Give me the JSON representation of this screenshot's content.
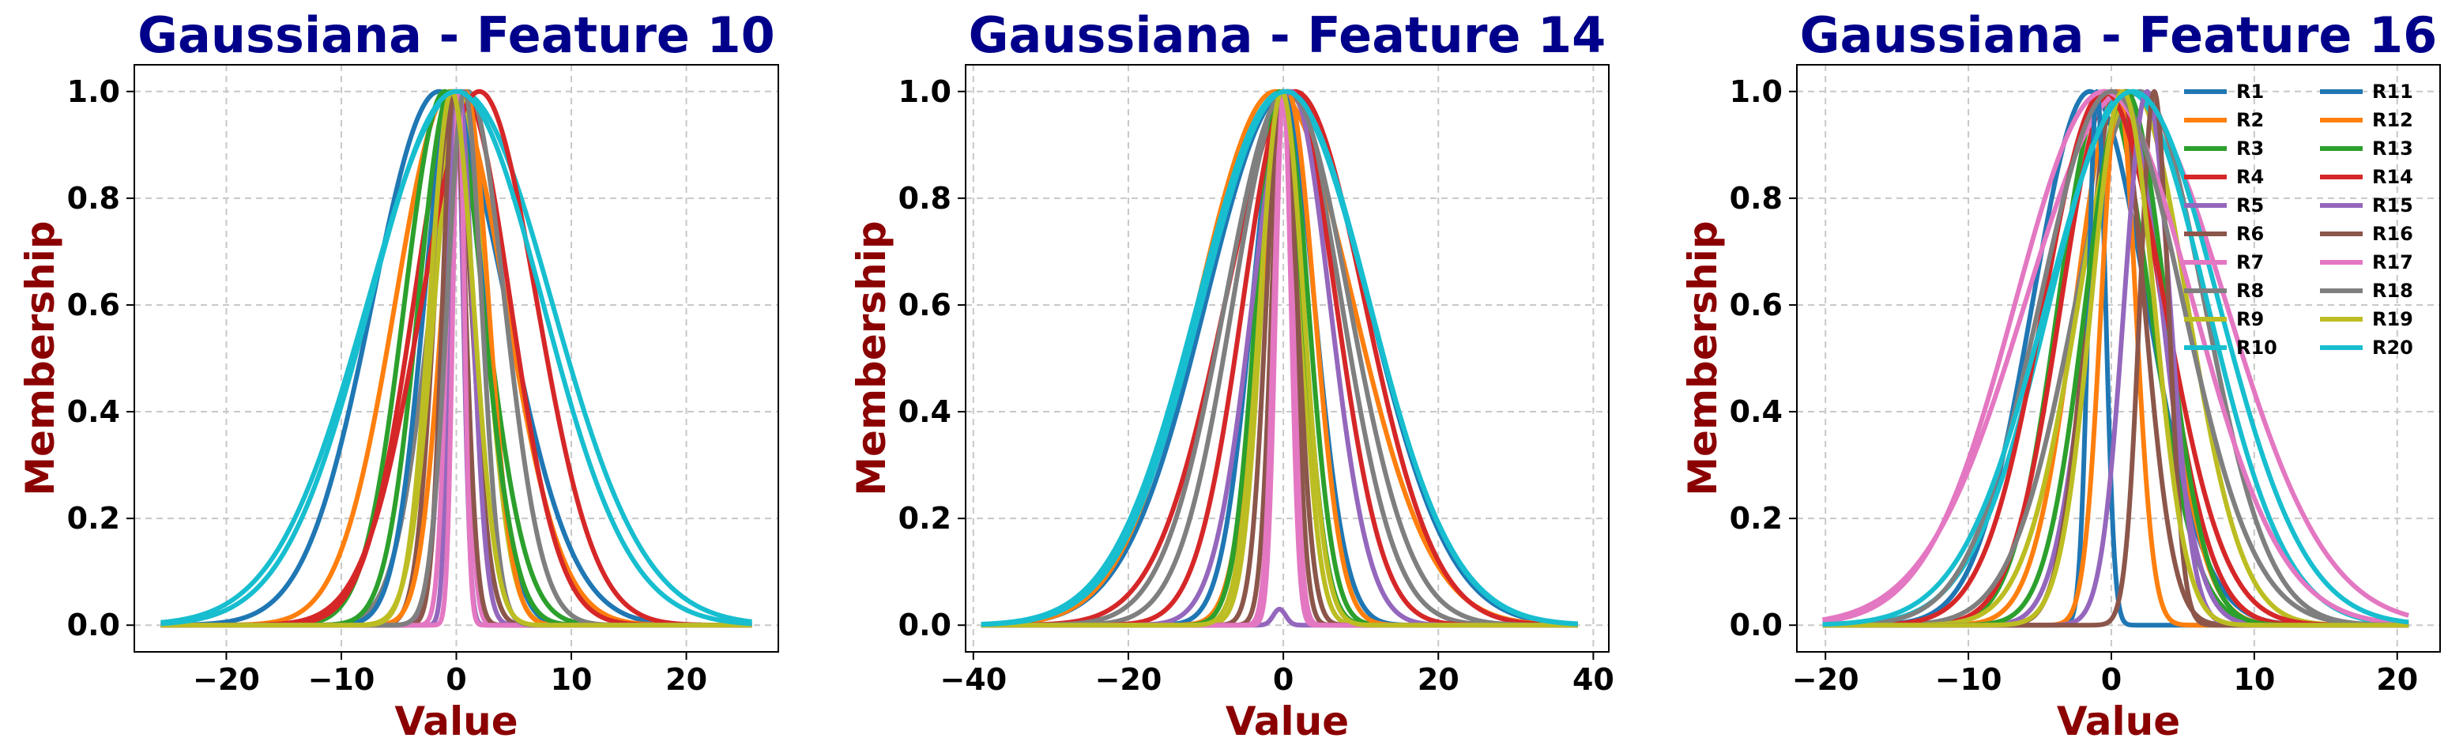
{
  "style": {
    "title_color": "#00008B",
    "label_color": "#8B0000",
    "grid": true,
    "grid_style": "dashed",
    "series_colors": [
      "#1f77b4",
      "#ff7f0e",
      "#2ca02c",
      "#d62728",
      "#9467bd",
      "#8c564b",
      "#e377c2",
      "#7f7f7f",
      "#bcbd22",
      "#17becf"
    ]
  },
  "chart_data": [
    {
      "type": "line",
      "title": "Gaussiana - Feature 10",
      "xlabel": "Value",
      "ylabel": "Membership",
      "xlim": [
        -28,
        28
      ],
      "ylim": [
        -0.05,
        1.05
      ],
      "xticks": [
        "−20",
        "−10",
        "0",
        "10",
        "20"
      ],
      "xtick_values": [
        -20,
        -10,
        0,
        10,
        20
      ],
      "yticks": [
        "0.0",
        "0.2",
        "0.4",
        "0.6",
        "0.8",
        "1.0"
      ],
      "ytick_values": [
        0,
        0.2,
        0.4,
        0.6,
        0.8,
        1.0
      ],
      "x_range": [
        -25.7,
        25.7
      ],
      "series": [
        {
          "name": "R1",
          "center": -1.5,
          "sigma": 5.8
        },
        {
          "name": "R2",
          "center": -0.5,
          "sigma": 4.8
        },
        {
          "name": "R3",
          "center": -1.0,
          "sigma": 3.5
        },
        {
          "name": "R4",
          "center": 0.5,
          "sigma": 4.2
        },
        {
          "name": "R5",
          "center": 0.0,
          "sigma": 0.6
        },
        {
          "name": "R6",
          "center": -0.3,
          "sigma": 1.6
        },
        {
          "name": "R7",
          "center": 0.0,
          "sigma": 0.8
        },
        {
          "name": "R8",
          "center": 1.0,
          "sigma": 3.2
        },
        {
          "name": "R9",
          "center": 0.3,
          "sigma": 2.2
        },
        {
          "name": "R10",
          "center": 0.3,
          "sigma": 8.0
        },
        {
          "name": "R11",
          "center": -0.2,
          "sigma": 2.6
        },
        {
          "name": "R12",
          "center": 0.8,
          "sigma": 2.0
        },
        {
          "name": "R13",
          "center": -0.5,
          "sigma": 2.8
        },
        {
          "name": "R14",
          "center": 2.0,
          "sigma": 5.0
        },
        {
          "name": "R15",
          "center": 0.2,
          "sigma": 1.2
        },
        {
          "name": "R16",
          "center": -0.2,
          "sigma": 1.0
        },
        {
          "name": "R17",
          "center": 0.2,
          "sigma": 0.5
        },
        {
          "name": "R18",
          "center": 0.7,
          "sigma": 1.5
        },
        {
          "name": "R19",
          "center": -0.4,
          "sigma": 1.9
        },
        {
          "name": "R20",
          "center": 0.0,
          "sigma": 7.5
        }
      ]
    },
    {
      "type": "line",
      "title": "Gaussiana - Feature 14",
      "xlabel": "Value",
      "ylabel": "Membership",
      "xlim": [
        -41,
        42
      ],
      "ylim": [
        -0.05,
        1.05
      ],
      "xticks": [
        "−40",
        "−20",
        "0",
        "20",
        "40"
      ],
      "xtick_values": [
        -40,
        -20,
        0,
        20,
        40
      ],
      "yticks": [
        "0.0",
        "0.2",
        "0.4",
        "0.6",
        "0.8",
        "1.0"
      ],
      "ytick_values": [
        0,
        0.2,
        0.4,
        0.6,
        0.8,
        1.0
      ],
      "x_range": [
        -39,
        38
      ],
      "series": [
        {
          "name": "R1",
          "center": 0.5,
          "sigma": 10.5
        },
        {
          "name": "R2",
          "center": -1.0,
          "sigma": 10.0
        },
        {
          "name": "R3",
          "center": 0.0,
          "sigma": 3.2
        },
        {
          "name": "R4",
          "center": 1.5,
          "sigma": 9.0
        },
        {
          "name": "R5",
          "center": -0.5,
          "sigma": 0.8,
          "peak": 0.03
        },
        {
          "name": "R6",
          "center": 0.0,
          "sigma": 1.5
        },
        {
          "name": "R7",
          "center": 0.0,
          "sigma": 1.2
        },
        {
          "name": "R8",
          "center": 0.5,
          "sigma": 7.0
        },
        {
          "name": "R9",
          "center": -0.3,
          "sigma": 2.5
        },
        {
          "name": "R10",
          "center": 0.0,
          "sigma": 11.0
        },
        {
          "name": "R11",
          "center": 0.0,
          "sigma": 4.0
        },
        {
          "name": "R12",
          "center": 0.5,
          "sigma": 3.5
        },
        {
          "name": "R13",
          "center": -0.5,
          "sigma": 3.0
        },
        {
          "name": "R14",
          "center": 0.8,
          "sigma": 6.0
        },
        {
          "name": "R15",
          "center": 1.0,
          "sigma": 5.0
        },
        {
          "name": "R16",
          "center": -0.2,
          "sigma": 2.0
        },
        {
          "name": "R17",
          "center": 0.0,
          "sigma": 1.0
        },
        {
          "name": "R18",
          "center": 0.5,
          "sigma": 8.0
        },
        {
          "name": "R19",
          "center": -0.2,
          "sigma": 2.8
        },
        {
          "name": "R20",
          "center": 0.3,
          "sigma": 10.8
        }
      ]
    },
    {
      "type": "line",
      "title": "Gaussiana - Feature 16",
      "xlabel": "Value",
      "ylabel": "Membership",
      "xlim": [
        -22,
        23
      ],
      "ylim": [
        -0.05,
        1.05
      ],
      "xticks": [
        "−20",
        "−10",
        "0",
        "10",
        "20"
      ],
      "xtick_values": [
        -20,
        -10,
        0,
        10,
        20
      ],
      "yticks": [
        "0.0",
        "0.2",
        "0.4",
        "0.6",
        "0.8",
        "1.0"
      ],
      "ytick_values": [
        0,
        0.2,
        0.4,
        0.6,
        0.8,
        1.0
      ],
      "x_range": [
        -20.2,
        20.8
      ],
      "series": [
        {
          "name": "R1",
          "center": -1.5,
          "sigma": 4.0
        },
        {
          "name": "R2",
          "center": 0.5,
          "sigma": 3.0
        },
        {
          "name": "R3",
          "center": -0.5,
          "sigma": 3.2
        },
        {
          "name": "R4",
          "center": 0.0,
          "sigma": 3.5
        },
        {
          "name": "R5",
          "center": 1.0,
          "sigma": 2.5
        },
        {
          "name": "R6",
          "center": 0.3,
          "sigma": 2.0
        },
        {
          "name": "R7",
          "center": 1.0,
          "sigma": 7.0
        },
        {
          "name": "R8",
          "center": 2.0,
          "sigma": 4.5
        },
        {
          "name": "R9",
          "center": 1.5,
          "sigma": 3.8
        },
        {
          "name": "R10",
          "center": 1.2,
          "sigma": 5.5
        },
        {
          "name": "R11",
          "center": -1.0,
          "sigma": 0.6
        },
        {
          "name": "R12",
          "center": 0.5,
          "sigma": 1.2
        },
        {
          "name": "R13",
          "center": 1.0,
          "sigma": 2.8
        },
        {
          "name": "R14",
          "center": -0.5,
          "sigma": 4.2
        },
        {
          "name": "R15",
          "center": 2.5,
          "sigma": 1.6
        },
        {
          "name": "R16",
          "center": 3.0,
          "sigma": 1.0
        },
        {
          "name": "R17",
          "center": -0.5,
          "sigma": 6.2
        },
        {
          "name": "R18",
          "center": 0.0,
          "sigma": 5.0
        },
        {
          "name": "R19",
          "center": 0.8,
          "sigma": 2.2
        },
        {
          "name": "R20",
          "center": 1.5,
          "sigma": 6.0
        }
      ]
    }
  ]
}
